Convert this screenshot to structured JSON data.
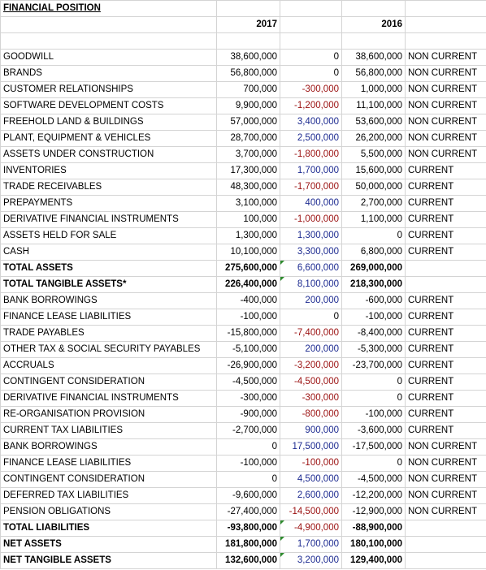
{
  "title": "FINANCIAL POSITION",
  "years": [
    "2017",
    "2016"
  ],
  "colors": {
    "increase": "#1c2a90",
    "decrease": "#9a0f0f",
    "grid": "#d4d4d4",
    "note_marker": "#2e8b2e"
  },
  "rows": [
    {
      "label": "GOODWILL",
      "y2017": "38,600,000",
      "change": "0",
      "sign": "zero",
      "y2016": "38,600,000",
      "cls": "NON CURRENT",
      "bold": false
    },
    {
      "label": "BRANDS",
      "y2017": "56,800,000",
      "change": "0",
      "sign": "zero",
      "y2016": "56,800,000",
      "cls": "NON CURRENT",
      "bold": false
    },
    {
      "label": "CUSTOMER RELATIONSHIPS",
      "y2017": "700,000",
      "change": "-300,000",
      "sign": "neg",
      "y2016": "1,000,000",
      "cls": "NON CURRENT",
      "bold": false
    },
    {
      "label": "SOFTWARE DEVELOPMENT COSTS",
      "y2017": "9,900,000",
      "change": "-1,200,000",
      "sign": "neg",
      "y2016": "11,100,000",
      "cls": "NON CURRENT",
      "bold": false
    },
    {
      "label": "FREEHOLD LAND & BUILDINGS",
      "y2017": "57,000,000",
      "change": "3,400,000",
      "sign": "pos",
      "y2016": "53,600,000",
      "cls": "NON CURRENT",
      "bold": false
    },
    {
      "label": "PLANT, EQUIPMENT & VEHICLES",
      "y2017": "28,700,000",
      "change": "2,500,000",
      "sign": "pos",
      "y2016": "26,200,000",
      "cls": "NON CURRENT",
      "bold": false
    },
    {
      "label": "ASSETS UNDER CONSTRUCTION",
      "y2017": "3,700,000",
      "change": "-1,800,000",
      "sign": "neg",
      "y2016": "5,500,000",
      "cls": "NON CURRENT",
      "bold": false
    },
    {
      "label": "INVENTORIES",
      "y2017": "17,300,000",
      "change": "1,700,000",
      "sign": "pos",
      "y2016": "15,600,000",
      "cls": "CURRENT",
      "bold": false
    },
    {
      "label": "TRADE RECEIVABLES",
      "y2017": "48,300,000",
      "change": "-1,700,000",
      "sign": "neg",
      "y2016": "50,000,000",
      "cls": "CURRENT",
      "bold": false
    },
    {
      "label": "PREPAYMENTS",
      "y2017": "3,100,000",
      "change": "400,000",
      "sign": "pos",
      "y2016": "2,700,000",
      "cls": "CURRENT",
      "bold": false
    },
    {
      "label": "DERIVATIVE FINANCIAL INSTRUMENTS",
      "y2017": "100,000",
      "change": "-1,000,000",
      "sign": "neg",
      "y2016": "1,100,000",
      "cls": "CURRENT",
      "bold": false
    },
    {
      "label": "ASSETS HELD FOR SALE",
      "y2017": "1,300,000",
      "change": "1,300,000",
      "sign": "pos",
      "y2016": "0",
      "cls": "CURRENT",
      "bold": false
    },
    {
      "label": "CASH",
      "y2017": "10,100,000",
      "change": "3,300,000",
      "sign": "pos",
      "y2016": "6,800,000",
      "cls": "CURRENT",
      "bold": false
    },
    {
      "label": "TOTAL ASSETS",
      "y2017": "275,600,000",
      "change": "6,600,000",
      "sign": "pos",
      "y2016": "269,000,000",
      "cls": "",
      "bold": true,
      "marker": true
    },
    {
      "label": "TOTAL TANGIBLE ASSETS*",
      "y2017": "226,400,000",
      "change": "8,100,000",
      "sign": "pos",
      "y2016": "218,300,000",
      "cls": "",
      "bold": true,
      "marker": true
    },
    {
      "label": "BANK BORROWINGS",
      "y2017": "-400,000",
      "change": "200,000",
      "sign": "pos",
      "y2016": "-600,000",
      "cls": "CURRENT",
      "bold": false
    },
    {
      "label": "FINANCE LEASE LIABILITIES",
      "y2017": "-100,000",
      "change": "0",
      "sign": "zero",
      "y2016": "-100,000",
      "cls": "CURRENT",
      "bold": false
    },
    {
      "label": "TRADE PAYABLES",
      "y2017": "-15,800,000",
      "change": "-7,400,000",
      "sign": "neg",
      "y2016": "-8,400,000",
      "cls": "CURRENT",
      "bold": false
    },
    {
      "label": "OTHER TAX & SOCIAL SECURITY PAYABLES",
      "y2017": "-5,100,000",
      "change": "200,000",
      "sign": "pos",
      "y2016": "-5,300,000",
      "cls": "CURRENT",
      "bold": false
    },
    {
      "label": "ACCRUALS",
      "y2017": "-26,900,000",
      "change": "-3,200,000",
      "sign": "neg",
      "y2016": "-23,700,000",
      "cls": "CURRENT",
      "bold": false
    },
    {
      "label": "CONTINGENT CONSIDERATION",
      "y2017": "-4,500,000",
      "change": "-4,500,000",
      "sign": "neg",
      "y2016": "0",
      "cls": "CURRENT",
      "bold": false
    },
    {
      "label": "DERIVATIVE FINANCIAL INSTRUMENTS",
      "y2017": "-300,000",
      "change": "-300,000",
      "sign": "neg",
      "y2016": "0",
      "cls": "CURRENT",
      "bold": false
    },
    {
      "label": "RE-ORGANISATION PROVISION",
      "y2017": "-900,000",
      "change": "-800,000",
      "sign": "neg",
      "y2016": "-100,000",
      "cls": "CURRENT",
      "bold": false
    },
    {
      "label": "CURRENT TAX LIABILITIES",
      "y2017": "-2,700,000",
      "change": "900,000",
      "sign": "pos",
      "y2016": "-3,600,000",
      "cls": "CURRENT",
      "bold": false
    },
    {
      "label": "BANK BORROWINGS",
      "y2017": "0",
      "change": "17,500,000",
      "sign": "pos",
      "y2016": "-17,500,000",
      "cls": "NON CURRENT",
      "bold": false
    },
    {
      "label": "FINANCE LEASE LIABILITIES",
      "y2017": "-100,000",
      "change": "-100,000",
      "sign": "neg",
      "y2016": "0",
      "cls": "NON CURRENT",
      "bold": false
    },
    {
      "label": "CONTINGENT CONSIDERATION",
      "y2017": "0",
      "change": "4,500,000",
      "sign": "pos",
      "y2016": "-4,500,000",
      "cls": "NON CURRENT",
      "bold": false
    },
    {
      "label": "DEFERRED TAX LIABILITIES",
      "y2017": "-9,600,000",
      "change": "2,600,000",
      "sign": "pos",
      "y2016": "-12,200,000",
      "cls": "NON CURRENT",
      "bold": false
    },
    {
      "label": "PENSION OBLIGATIONS",
      "y2017": "-27,400,000",
      "change": "-14,500,000",
      "sign": "neg",
      "y2016": "-12,900,000",
      "cls": "NON CURRENT",
      "bold": false
    },
    {
      "label": "TOTAL LIABILITIES",
      "y2017": "-93,800,000",
      "change": "-4,900,000",
      "sign": "neg",
      "y2016": "-88,900,000",
      "cls": "",
      "bold": true,
      "marker": true
    },
    {
      "label": "NET ASSETS",
      "y2017": "181,800,000",
      "change": "1,700,000",
      "sign": "pos",
      "y2016": "180,100,000",
      "cls": "",
      "bold": true,
      "marker": true
    },
    {
      "label": "NET TANGIBLE ASSETS",
      "y2017": "132,600,000",
      "change": "3,200,000",
      "sign": "pos",
      "y2016": "129,400,000",
      "cls": "",
      "bold": true,
      "marker": true
    }
  ]
}
